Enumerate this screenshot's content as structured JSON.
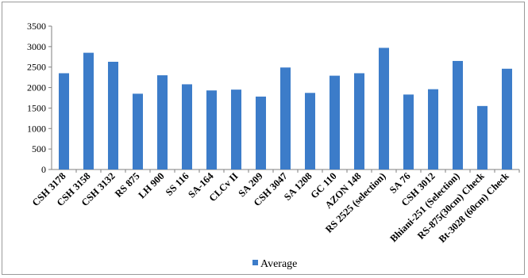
{
  "chart_data": {
    "type": "bar",
    "categories": [
      "CSH 3178",
      "CSH 3158",
      "CSH 3132",
      "RS 875",
      "LH 900",
      "SS 116",
      "SA-164",
      "CLCv II",
      "SA 209",
      "CSH 3047",
      "SA 1208",
      "GC 110",
      "AZON 148",
      "RS 2525 (selection)",
      "SA 76",
      "CSH 3012",
      "Bhiani-251 (Selection)",
      "RS-875(30cm) Check",
      "Bt-3028 (60cm) Check"
    ],
    "series": [
      {
        "name": "Average",
        "values": [
          2350,
          2850,
          2630,
          1850,
          2300,
          2080,
          1930,
          1950,
          1780,
          2490,
          1870,
          2290,
          2350,
          2970,
          1830,
          1960,
          2650,
          1550,
          2460
        ]
      }
    ],
    "yticks": [
      "0",
      "500",
      "1000",
      "1500",
      "2000",
      "2500",
      "3000",
      "3500"
    ],
    "ylim": [
      0,
      3500
    ],
    "grid": false,
    "legend": "bottom-center",
    "colors": {
      "bar": "#3c7cc9",
      "axis": "#7f7f7f"
    },
    "legend_label": "Average"
  }
}
